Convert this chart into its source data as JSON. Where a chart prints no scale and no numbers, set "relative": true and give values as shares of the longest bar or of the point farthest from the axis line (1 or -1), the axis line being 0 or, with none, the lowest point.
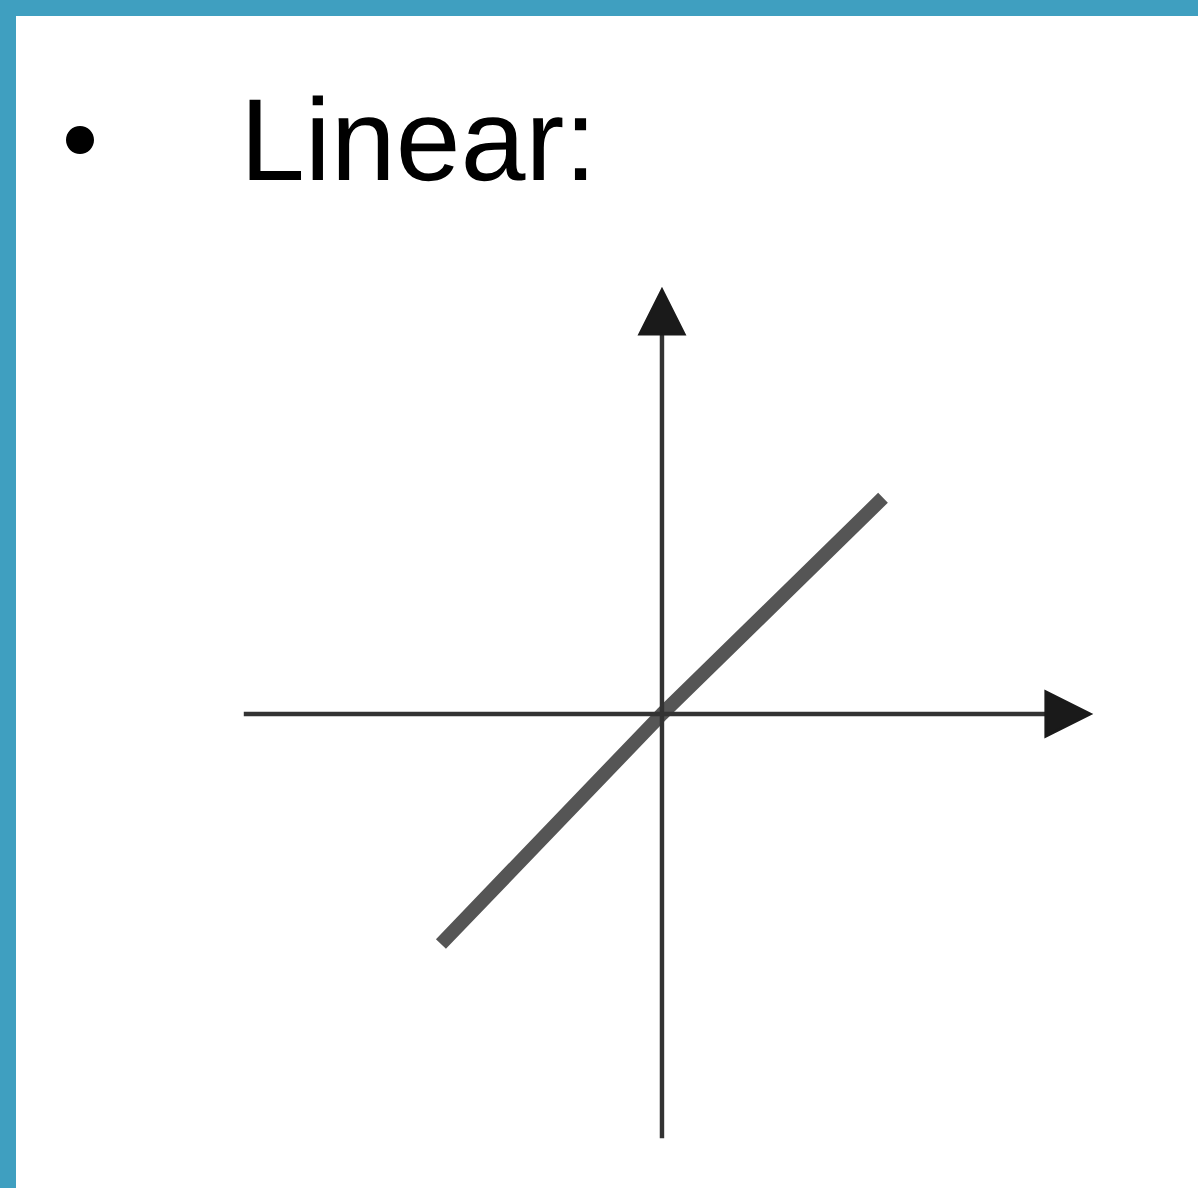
{
  "chart_data": {
    "type": "line",
    "title": "Linear:",
    "categories": [
      null,
      null,
      null
    ],
    "relative": true,
    "series": [
      {
        "color": "#555555",
        "values": [
          -1,
          0,
          0.94
        ]
      }
    ]
  }
}
